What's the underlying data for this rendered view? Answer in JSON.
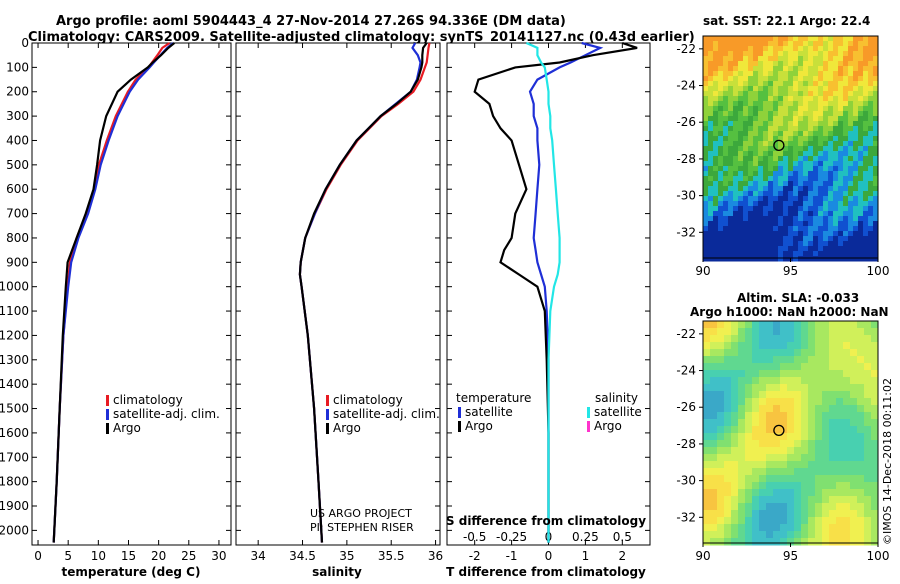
{
  "title_line1": "Argo profile: aoml 5904443_4 27-Nov-2014 27.26S 94.336E (DM data)",
  "title_line2": "Climatology: CARS2009. Satellite-adjusted climatology: synTS_20141127.nc (0.43d earlier)",
  "credit_line1": "US ARGO PROJECT",
  "credit_line2": "PI: STEPHEN RISER",
  "timestamp": "©IMOS 14-Dec-2018 00:11:02",
  "colors": {
    "climatology": "#e81b23",
    "satellite": "#1f2fd6",
    "argo": "#000000",
    "sal_satellite": "#22e6e6",
    "sal_argo": "#ff33cc"
  },
  "chart_data": [
    {
      "type": "line",
      "name": "temperature",
      "xlabel": "temperature (deg C)",
      "ylabel": "",
      "xlim": [
        -1,
        32
      ],
      "ylim": [
        2060,
        0
      ],
      "xticks": [
        0,
        5,
        10,
        15,
        20,
        25,
        30
      ],
      "yticks": [
        0,
        100,
        200,
        300,
        400,
        500,
        600,
        700,
        800,
        900,
        1000,
        1100,
        1200,
        1300,
        1400,
        1500,
        1600,
        1700,
        1800,
        1900,
        2000
      ],
      "depth": [
        0,
        20,
        50,
        80,
        100,
        150,
        200,
        300,
        400,
        500,
        600,
        700,
        800,
        900,
        1000,
        1200,
        1500,
        1800,
        2050
      ],
      "legend": [
        "climatology",
        "satellite-adj. clim.",
        "Argo"
      ],
      "series": [
        {
          "name": "climatology",
          "color_key": "climatology",
          "values": [
            21.8,
            20.6,
            19.8,
            18.9,
            18.3,
            16.2,
            14.9,
            12.9,
            11.4,
            10.1,
            9.3,
            8.0,
            6.4,
            5.3,
            4.9,
            4.2,
            3.6,
            3.1,
            2.6
          ]
        },
        {
          "name": "satellite-adj. clim.",
          "color_key": "satellite",
          "values": [
            22.4,
            21.4,
            20.3,
            19.2,
            18.5,
            16.6,
            15.2,
            13.2,
            11.7,
            10.4,
            9.5,
            8.3,
            6.7,
            5.5,
            5.0,
            4.2,
            3.6,
            3.1,
            2.6
          ]
        },
        {
          "name": "Argo",
          "color_key": "argo",
          "values": [
            22.6,
            21.6,
            20.4,
            19.0,
            18.2,
            15.4,
            13.2,
            11.3,
            10.3,
            9.8,
            9.2,
            7.9,
            6.4,
            4.9,
            4.6,
            4.1,
            3.6,
            3.1,
            2.6
          ]
        }
      ]
    },
    {
      "type": "line",
      "name": "salinity",
      "xlabel": "salinity",
      "ylabel": "",
      "xlim": [
        33.75,
        36.05
      ],
      "ylim": [
        2060,
        0
      ],
      "xticks": [
        34,
        34.5,
        35,
        35.5,
        36
      ],
      "depth": [
        0,
        20,
        50,
        80,
        100,
        150,
        200,
        250,
        300,
        400,
        500,
        600,
        700,
        800,
        900,
        950,
        1000,
        1200,
        1500,
        1800,
        2050
      ],
      "legend": [
        "climatology",
        "satellite-adj. clim.",
        "Argo"
      ],
      "series": [
        {
          "name": "climatology",
          "color_key": "climatology",
          "values": [
            35.93,
            35.92,
            35.91,
            35.9,
            35.88,
            35.83,
            35.75,
            35.58,
            35.39,
            35.12,
            34.93,
            34.77,
            34.64,
            34.53,
            34.48,
            34.47,
            34.49,
            34.56,
            34.63,
            34.68,
            34.72
          ]
        },
        {
          "name": "satellite-adj. clim.",
          "color_key": "satellite",
          "values": [
            35.77,
            35.74,
            35.8,
            35.83,
            35.82,
            35.79,
            35.72,
            35.55,
            35.38,
            35.11,
            34.92,
            34.76,
            34.64,
            34.53,
            34.48,
            34.47,
            34.49,
            34.56,
            34.63,
            34.68,
            34.72
          ]
        },
        {
          "name": "Argo",
          "color_key": "argo",
          "values": [
            35.9,
            35.86,
            35.85,
            35.85,
            35.84,
            35.8,
            35.72,
            35.56,
            35.38,
            35.11,
            34.92,
            34.76,
            34.63,
            34.53,
            34.48,
            34.47,
            34.49,
            34.56,
            34.63,
            34.68,
            34.72
          ]
        }
      ]
    },
    {
      "type": "line",
      "name": "differences",
      "xlabel": "T difference from climatology",
      "xlabel_top": "S difference from climatology",
      "xlim": [
        -2.75,
        2.75
      ],
      "ylim": [
        2060,
        0
      ],
      "xticks": [
        -2,
        -1,
        0,
        1,
        2
      ],
      "top_xticks": [
        "-0.5",
        "-0.25",
        "0",
        "0.25",
        "0.5"
      ],
      "top_xtick_pos": [
        -2,
        -1,
        0,
        1,
        2
      ],
      "depth": [
        0,
        20,
        50,
        80,
        100,
        150,
        200,
        250,
        300,
        350,
        400,
        500,
        600,
        700,
        800,
        850,
        900,
        950,
        1000,
        1100,
        1300,
        1600,
        2050
      ],
      "legend_left_title": "temperature",
      "legend_left": [
        "satellite",
        "Argo"
      ],
      "legend_right_title": "salinity",
      "legend_right": [
        "satellite",
        "Argo"
      ],
      "series": [
        {
          "name": "T satellite",
          "color_key": "satellite",
          "values": [
            0.9,
            1.4,
            1.0,
            0.6,
            0.3,
            -0.3,
            -0.5,
            -0.4,
            -0.4,
            -0.3,
            -0.3,
            -0.25,
            -0.3,
            -0.35,
            -0.4,
            -0.35,
            -0.3,
            -0.2,
            -0.1,
            -0.05,
            0,
            0,
            0
          ]
        },
        {
          "name": "T Argo",
          "color_key": "argo",
          "values": [
            2.0,
            2.4,
            1.2,
            0.3,
            -0.9,
            -1.9,
            -2.0,
            -1.6,
            -1.5,
            -1.3,
            -1.0,
            -0.8,
            -0.6,
            -0.9,
            -1.0,
            -1.2,
            -1.3,
            -0.8,
            -0.3,
            -0.1,
            -0.05,
            0,
            0
          ]
        },
        {
          "name": "S satellite",
          "color_key": "sal_satellite",
          "values": [
            -0.6,
            -0.3,
            -0.3,
            -0.2,
            -0.1,
            -0.05,
            0,
            0,
            0.05,
            0.05,
            0.1,
            0.15,
            0.2,
            0.25,
            0.3,
            0.3,
            0.3,
            0.25,
            0.15,
            0.05,
            0,
            0,
            0
          ]
        }
      ]
    }
  ],
  "maps": [
    {
      "title": "sat. SST: 22.1 Argo: 22.4",
      "title2": "",
      "lon_ticks": [
        90,
        95,
        100
      ],
      "lat_ticks": [
        -22,
        -24,
        -26,
        -28,
        -30,
        -32
      ],
      "kind": "sst"
    },
    {
      "title": "Altim. SLA: -0.033",
      "title2": "Argo h1000: NaN h2000: NaN",
      "lon_ticks": [
        90,
        95,
        100
      ],
      "lat_ticks": [
        -22,
        -24,
        -26,
        -28,
        -30,
        -32
      ],
      "kind": "sla"
    }
  ],
  "profile_location": {
    "lon": 94.336,
    "lat": -27.26
  }
}
